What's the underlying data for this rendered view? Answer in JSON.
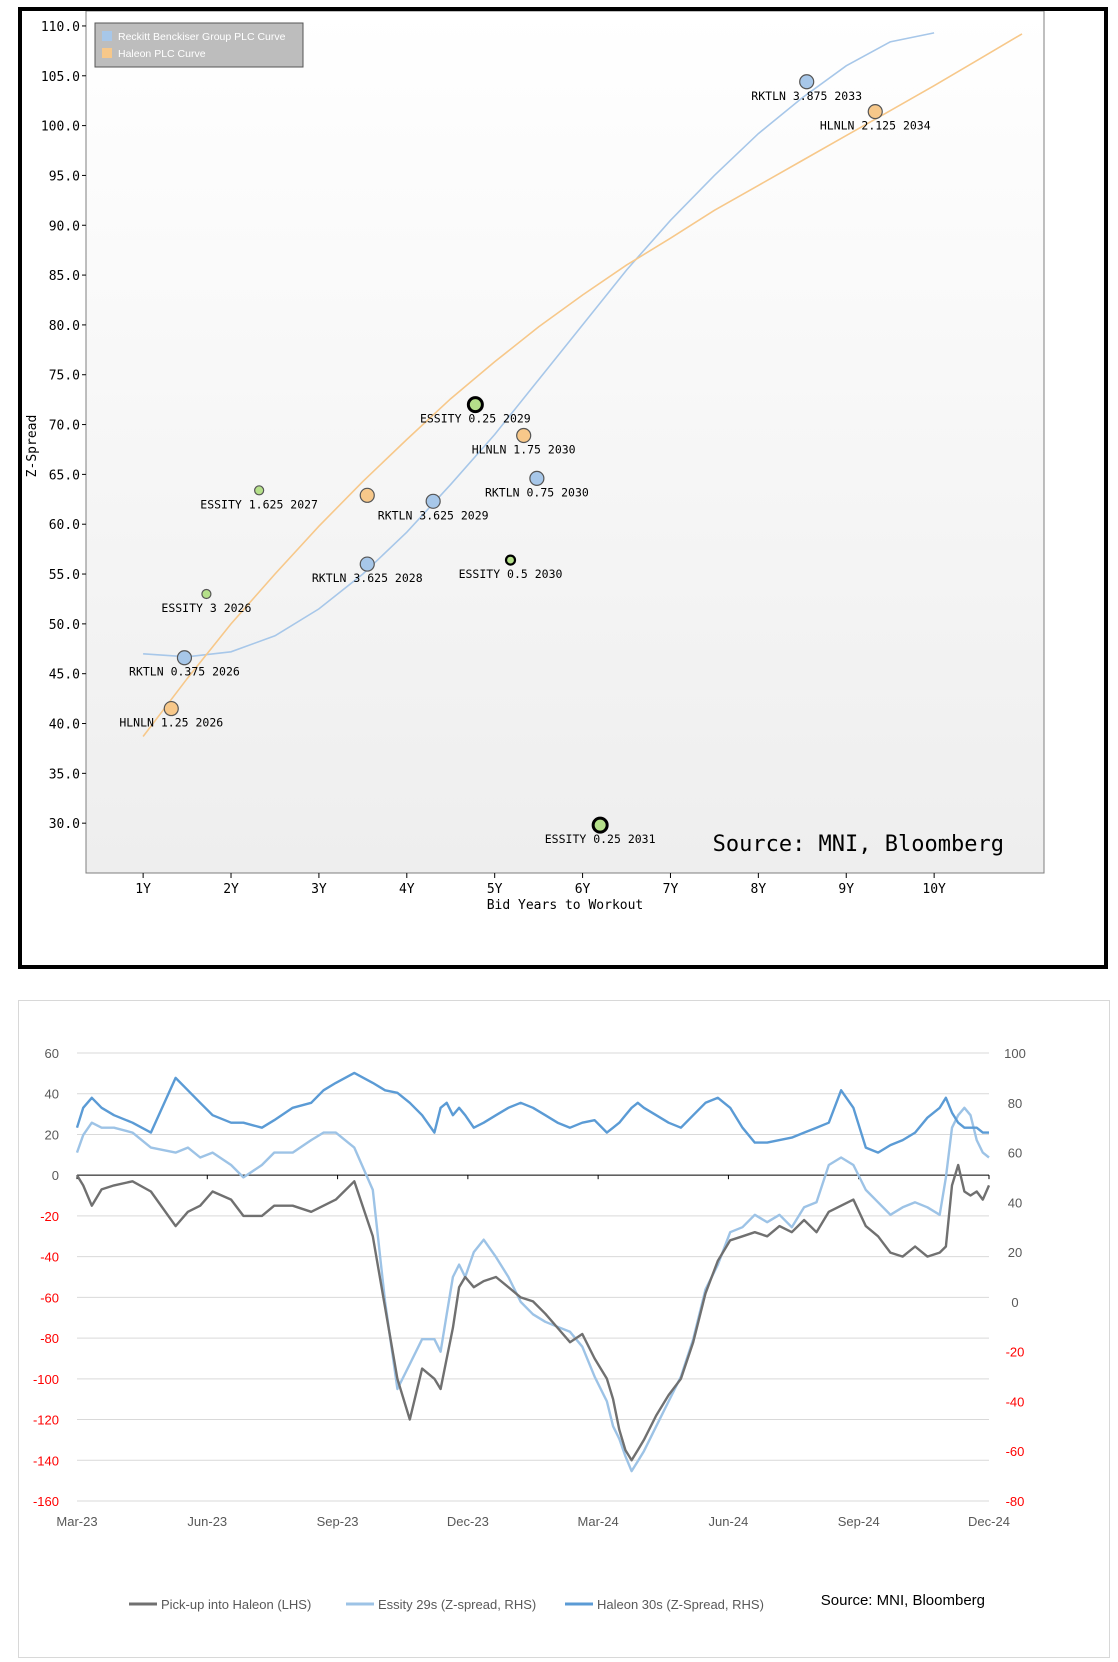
{
  "chart_data": [
    {
      "type": "scatter",
      "title": "",
      "xlabel": "Bid Years to Workout",
      "ylabel": "Z-Spread",
      "xlim": [
        0.35,
        11.25
      ],
      "ylim": [
        25.0,
        111.5
      ],
      "x_ticks": [
        {
          "value": 1,
          "label": "1Y"
        },
        {
          "value": 2,
          "label": "2Y"
        },
        {
          "value": 3,
          "label": "3Y"
        },
        {
          "value": 4,
          "label": "4Y"
        },
        {
          "value": 5,
          "label": "5Y"
        },
        {
          "value": 6,
          "label": "6Y"
        },
        {
          "value": 7,
          "label": "7Y"
        },
        {
          "value": 8,
          "label": "8Y"
        },
        {
          "value": 9,
          "label": "9Y"
        },
        {
          "value": 10,
          "label": "10Y"
        }
      ],
      "y_ticks": [
        30.0,
        35.0,
        40.0,
        45.0,
        50.0,
        55.0,
        60.0,
        65.0,
        70.0,
        75.0,
        80.0,
        85.0,
        90.0,
        95.0,
        100.0,
        105.0,
        110.0
      ],
      "y_tick_labels": [
        "30.0",
        "35.0",
        "40.0",
        "45.0",
        "50.0",
        "55.0",
        "60.0",
        "65.0",
        "70.0",
        "75.0",
        "80.0",
        "85.0",
        "90.0",
        "95.0",
        "100.0",
        "105.0",
        "110.0"
      ],
      "legend": [
        {
          "name": "Reckitt Benckiser Group PLC Curve",
          "color": "#a7c7e9"
        },
        {
          "name": "Haleon PLC Curve",
          "color": "#f7c88a"
        }
      ],
      "curves": [
        {
          "name": "Reckitt Benckiser Group PLC Curve",
          "color": "#a7c7e9",
          "points": [
            [
              1.0,
              47.0
            ],
            [
              1.5,
              46.7
            ],
            [
              2.0,
              47.2
            ],
            [
              2.5,
              48.8
            ],
            [
              3.0,
              51.5
            ],
            [
              3.5,
              55.0
            ],
            [
              4.0,
              59.2
            ],
            [
              4.5,
              64.0
            ],
            [
              5.0,
              69.0
            ],
            [
              5.5,
              74.5
            ],
            [
              6.0,
              80.0
            ],
            [
              6.5,
              85.5
            ],
            [
              7.0,
              90.5
            ],
            [
              7.5,
              95.0
            ],
            [
              8.0,
              99.2
            ],
            [
              8.5,
              102.8
            ],
            [
              9.0,
              106.0
            ],
            [
              9.5,
              108.4
            ],
            [
              10.0,
              109.3
            ]
          ]
        },
        {
          "name": "Haleon PLC Curve",
          "color": "#f7c88a",
          "points": [
            [
              1.0,
              38.7
            ],
            [
              1.5,
              44.5
            ],
            [
              2.0,
              50.0
            ],
            [
              2.5,
              55.0
            ],
            [
              3.0,
              59.8
            ],
            [
              3.5,
              64.3
            ],
            [
              4.0,
              68.5
            ],
            [
              4.5,
              72.6
            ],
            [
              5.0,
              76.3
            ],
            [
              5.5,
              79.8
            ],
            [
              6.0,
              83.0
            ],
            [
              6.5,
              86.0
            ],
            [
              7.0,
              88.7
            ],
            [
              7.5,
              91.5
            ],
            [
              8.0,
              94.0
            ],
            [
              8.5,
              96.5
            ],
            [
              9.0,
              99.0
            ],
            [
              9.5,
              101.5
            ],
            [
              10.0,
              104.0
            ],
            [
              10.5,
              106.6
            ],
            [
              11.0,
              109.2
            ]
          ]
        }
      ],
      "points": [
        {
          "label": "RKTLN 3.875 2033",
          "x": 8.55,
          "y": 104.4,
          "color": "#a7c7e9",
          "size": "large",
          "stroke": "#555"
        },
        {
          "label": "HLNLN 2.125 2034",
          "x": 9.33,
          "y": 101.4,
          "color": "#f7c88a",
          "size": "large",
          "stroke": "#555"
        },
        {
          "label": "ESSITY 0.25 2029",
          "x": 4.78,
          "y": 72.0,
          "color": "#b5e08a",
          "size": "large",
          "stroke": "#000"
        },
        {
          "label": "HLNLN 1.75 2030",
          "x": 5.33,
          "y": 68.9,
          "color": "#f7c88a",
          "size": "large",
          "stroke": "#555"
        },
        {
          "label": "RKTLN 0.75 2030",
          "x": 5.48,
          "y": 64.6,
          "color": "#a7c7e9",
          "size": "large",
          "stroke": "#555"
        },
        {
          "label": "ESSITY 1.625 2027",
          "x": 2.32,
          "y": 63.4,
          "color": "#b5e08a",
          "size": "small",
          "stroke": "#555"
        },
        {
          "label": "",
          "x": 3.55,
          "y": 62.9,
          "color": "#f7c88a",
          "size": "large",
          "stroke": "#555"
        },
        {
          "label": "RKTLN 3.625 2029",
          "x": 4.3,
          "y": 62.3,
          "color": "#a7c7e9",
          "size": "large",
          "stroke": "#555"
        },
        {
          "label": "ESSITY 0.5 2030",
          "x": 5.18,
          "y": 56.4,
          "color": "#b5e08a",
          "size": "small",
          "stroke": "#000"
        },
        {
          "label": "RKTLN 3.625 2028",
          "x": 3.55,
          "y": 56.0,
          "color": "#a7c7e9",
          "size": "large",
          "stroke": "#555"
        },
        {
          "label": "ESSITY 3 2026",
          "x": 1.72,
          "y": 53.0,
          "color": "#b5e08a",
          "size": "small",
          "stroke": "#555"
        },
        {
          "label": "RKTLN 0.375 2026",
          "x": 1.47,
          "y": 46.6,
          "color": "#a7c7e9",
          "size": "large",
          "stroke": "#555"
        },
        {
          "label": "HLNLN 1.25 2026",
          "x": 1.32,
          "y": 41.5,
          "color": "#f7c88a",
          "size": "large",
          "stroke": "#555"
        },
        {
          "label": "ESSITY 0.25 2031",
          "x": 6.2,
          "y": 29.8,
          "color": "#b5e08a",
          "size": "large",
          "stroke": "#000"
        }
      ],
      "source": "Source: MNI, Bloomberg"
    },
    {
      "type": "line",
      "x_ticks": [
        "Mar-23",
        "Jun-23",
        "Sep-23",
        "Dec-23",
        "Mar-24",
        "Jun-24",
        "Sep-24",
        "Dec-24"
      ],
      "y_left": {
        "range": [
          -160,
          60
        ],
        "ticks": [
          "60",
          "40",
          "20",
          "0",
          "-20",
          "-40",
          "-60",
          "-80",
          "-100",
          "-120",
          "-140",
          "-160"
        ]
      },
      "y_right": {
        "range": [
          -80,
          100
        ],
        "ticks": [
          "100",
          "80",
          "60",
          "40",
          "20",
          "0",
          "-20",
          "-40",
          "-60",
          "-80"
        ]
      },
      "negative_tick_color": "#ff0000",
      "series": [
        {
          "name": "Pick-up into Haleon (LHS)",
          "axis": "left",
          "color": "#707070",
          "x": [
            0,
            0.05,
            0.12,
            0.2,
            0.3,
            0.45,
            0.6,
            0.8,
            0.9,
            1.0,
            1.1,
            1.25,
            1.35,
            1.5,
            1.6,
            1.75,
            1.9,
            2.0,
            2.1,
            2.25,
            2.4,
            2.5,
            2.6,
            2.7,
            2.8,
            2.9,
            2.95,
            3.0,
            3.05,
            3.1,
            3.15,
            3.22,
            3.3,
            3.4,
            3.5,
            3.6,
            3.7,
            3.8,
            3.9,
            4.0,
            4.1,
            4.2,
            4.3,
            4.35,
            4.4,
            4.45,
            4.5,
            4.55,
            4.6,
            4.7,
            4.8,
            4.9,
            5.0,
            5.1,
            5.2,
            5.3,
            5.4,
            5.5,
            5.6,
            5.7,
            5.8,
            5.9,
            6.0,
            6.1,
            6.2,
            6.3,
            6.4,
            6.5,
            6.6,
            6.7,
            6.8,
            6.9,
            7.0,
            7.05,
            7.1,
            7.15,
            7.2,
            7.25,
            7.3,
            7.35,
            7.4
          ],
          "values": [
            0,
            -5,
            -15,
            -7,
            -5,
            -3,
            -8,
            -25,
            -18,
            -15,
            -8,
            -12,
            -20,
            -20,
            -15,
            -15,
            -18,
            -15,
            -12,
            -3,
            -30,
            -65,
            -100,
            -120,
            -95,
            -100,
            -105,
            -90,
            -75,
            -55,
            -50,
            -55,
            -52,
            -50,
            -55,
            -60,
            -62,
            -68,
            -75,
            -82,
            -78,
            -90,
            -100,
            -110,
            -125,
            -135,
            -140,
            -135,
            -130,
            -118,
            -108,
            -100,
            -82,
            -58,
            -42,
            -32,
            -30,
            -28,
            -30,
            -25,
            -28,
            -22,
            -28,
            -18,
            -15,
            -12,
            -25,
            -30,
            -38,
            -40,
            -35,
            -40,
            -38,
            -35,
            -5,
            5,
            -8,
            -10,
            -8,
            -12,
            -5
          ]
        },
        {
          "name": "Essity 29s (Z-spread, RHS)",
          "axis": "right",
          "color": "#9dc3e6",
          "x": [
            0,
            0.05,
            0.12,
            0.2,
            0.3,
            0.45,
            0.6,
            0.8,
            0.9,
            1.0,
            1.1,
            1.25,
            1.35,
            1.5,
            1.6,
            1.75,
            1.9,
            2.0,
            2.1,
            2.25,
            2.4,
            2.5,
            2.6,
            2.7,
            2.8,
            2.9,
            2.95,
            3.0,
            3.05,
            3.1,
            3.15,
            3.22,
            3.3,
            3.4,
            3.5,
            3.6,
            3.7,
            3.8,
            3.9,
            4.0,
            4.1,
            4.2,
            4.3,
            4.35,
            4.4,
            4.45,
            4.5,
            4.55,
            4.6,
            4.7,
            4.8,
            4.9,
            5.0,
            5.1,
            5.2,
            5.3,
            5.4,
            5.5,
            5.6,
            5.7,
            5.8,
            5.9,
            6.0,
            6.1,
            6.2,
            6.3,
            6.4,
            6.5,
            6.6,
            6.7,
            6.8,
            6.9,
            7.0,
            7.05,
            7.1,
            7.15,
            7.2,
            7.25,
            7.3,
            7.35,
            7.4
          ],
          "values": [
            60,
            67,
            72,
            70,
            70,
            68,
            62,
            60,
            62,
            58,
            60,
            55,
            50,
            55,
            60,
            60,
            65,
            68,
            68,
            62,
            45,
            0,
            -35,
            -25,
            -15,
            -15,
            -20,
            -5,
            10,
            15,
            10,
            20,
            25,
            18,
            10,
            0,
            -5,
            -8,
            -10,
            -12,
            -18,
            -30,
            -40,
            -50,
            -55,
            -62,
            -68,
            -64,
            -60,
            -50,
            -40,
            -30,
            -15,
            5,
            15,
            28,
            30,
            35,
            32,
            35,
            30,
            38,
            40,
            55,
            58,
            55,
            45,
            40,
            35,
            38,
            40,
            38,
            35,
            50,
            70,
            75,
            78,
            75,
            65,
            60,
            58
          ]
        },
        {
          "name": "Haleon 30s (Z-Spread, RHS)",
          "axis": "right",
          "color": "#5b9bd5",
          "x": [
            0,
            0.05,
            0.12,
            0.2,
            0.3,
            0.45,
            0.6,
            0.8,
            0.9,
            1.0,
            1.1,
            1.25,
            1.35,
            1.5,
            1.6,
            1.75,
            1.9,
            2.0,
            2.1,
            2.25,
            2.4,
            2.5,
            2.6,
            2.7,
            2.8,
            2.9,
            2.95,
            3.0,
            3.05,
            3.1,
            3.15,
            3.22,
            3.3,
            3.4,
            3.5,
            3.6,
            3.7,
            3.8,
            3.9,
            4.0,
            4.1,
            4.2,
            4.3,
            4.35,
            4.4,
            4.45,
            4.5,
            4.55,
            4.6,
            4.7,
            4.8,
            4.9,
            5.0,
            5.1,
            5.2,
            5.3,
            5.4,
            5.5,
            5.6,
            5.7,
            5.8,
            5.9,
            6.0,
            6.1,
            6.2,
            6.3,
            6.4,
            6.5,
            6.6,
            6.7,
            6.8,
            6.9,
            7.0,
            7.05,
            7.1,
            7.15,
            7.2,
            7.25,
            7.3,
            7.35,
            7.4
          ],
          "values": [
            70,
            78,
            82,
            78,
            75,
            72,
            68,
            90,
            85,
            80,
            75,
            72,
            72,
            70,
            73,
            78,
            80,
            85,
            88,
            92,
            88,
            85,
            84,
            80,
            75,
            68,
            78,
            80,
            75,
            78,
            75,
            70,
            72,
            75,
            78,
            80,
            78,
            75,
            72,
            70,
            72,
            73,
            68,
            70,
            72,
            75,
            78,
            80,
            78,
            75,
            72,
            70,
            75,
            80,
            82,
            78,
            70,
            64,
            64,
            65,
            66,
            68,
            70,
            72,
            85,
            78,
            62,
            60,
            63,
            65,
            68,
            74,
            78,
            82,
            76,
            72,
            70,
            70,
            70,
            68,
            68
          ]
        }
      ],
      "source": "Source: MNI, Bloomberg"
    }
  ]
}
